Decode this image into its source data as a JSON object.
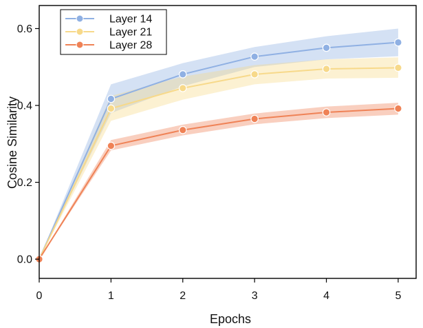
{
  "chart_data": {
    "type": "line",
    "xlabel": "Epochs",
    "ylabel": "Cosine Similarity",
    "xlim": [
      0,
      5.25
    ],
    "ylim": [
      -0.05,
      0.66
    ],
    "xticks": [
      0,
      1,
      2,
      3,
      4,
      5
    ],
    "xtick_labels": [
      "0",
      "1",
      "2",
      "3",
      "4",
      "5"
    ],
    "yticks": [
      0.0,
      0.2,
      0.4,
      0.6
    ],
    "ytick_labels": [
      "0.0",
      "0.2",
      "0.4",
      "0.6"
    ],
    "grid": false,
    "legend_position": "top-left",
    "x": [
      0,
      1,
      2,
      3,
      4,
      5
    ],
    "series": [
      {
        "name": "Layer 14",
        "color": "#8fb0e3",
        "values": [
          0.0,
          0.417,
          0.481,
          0.527,
          0.55,
          0.564
        ],
        "lower": [
          0.0,
          0.38,
          0.45,
          0.5,
          0.52,
          0.528
        ],
        "upper": [
          0.0,
          0.455,
          0.51,
          0.552,
          0.58,
          0.6
        ]
      },
      {
        "name": "Layer 21",
        "color": "#f7d98a",
        "values": [
          0.0,
          0.392,
          0.445,
          0.481,
          0.495,
          0.498
        ],
        "lower": [
          0.0,
          0.36,
          0.415,
          0.455,
          0.47,
          0.472
        ],
        "upper": [
          0.0,
          0.425,
          0.475,
          0.505,
          0.52,
          0.525
        ]
      },
      {
        "name": "Layer 28",
        "color": "#ef8256",
        "values": [
          0.0,
          0.295,
          0.336,
          0.365,
          0.382,
          0.392
        ],
        "lower": [
          0.0,
          0.283,
          0.322,
          0.351,
          0.367,
          0.376
        ],
        "upper": [
          0.0,
          0.31,
          0.35,
          0.379,
          0.397,
          0.407
        ]
      }
    ]
  }
}
